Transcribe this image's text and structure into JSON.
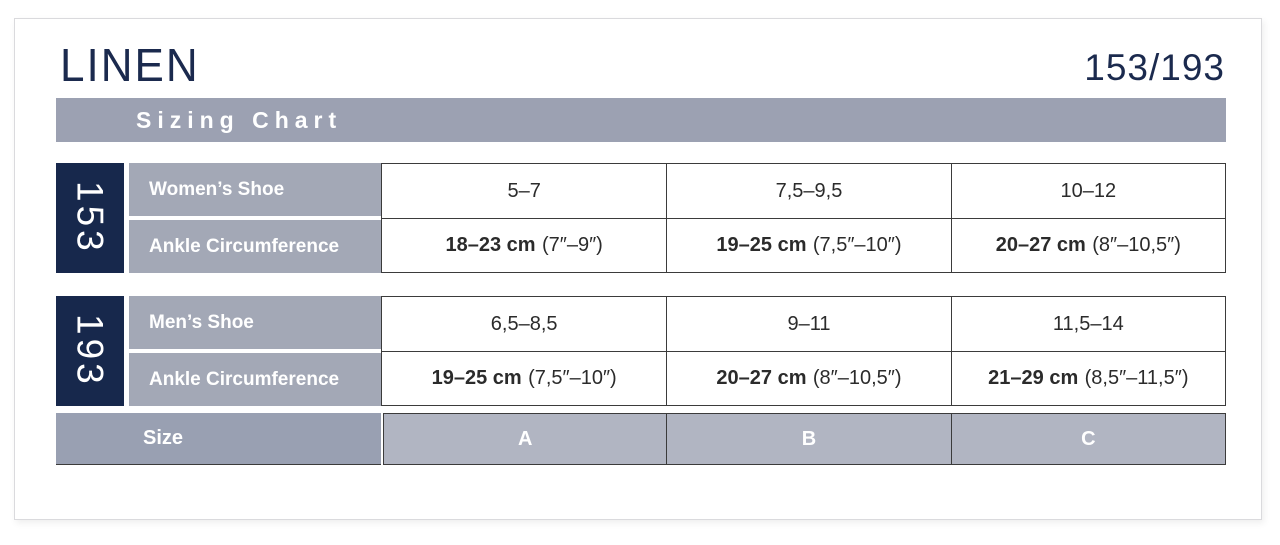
{
  "brand": "LINEN",
  "model": "153/193",
  "header": {
    "title": "Sizing Chart"
  },
  "colors": {
    "navy": "#17284c",
    "header_bar_gray": "#9ca1b2",
    "label_gray": "#a3a8b6",
    "size_label_gray": "#99a0b2",
    "size_cell_gray": "#b1b5c2",
    "border_dark": "#3b3b3b",
    "text_dark": "#2b2b2b"
  },
  "sections": [
    {
      "tag": "153",
      "rows": [
        {
          "label": "Women’s Shoe",
          "cells": [
            {
              "main": "5–7"
            },
            {
              "main": "7,5–9,5"
            },
            {
              "main": "10–12"
            }
          ]
        },
        {
          "label": "Ankle Circumference",
          "cells": [
            {
              "main": "18–23 cm",
              "suffix": "(7″–9″)"
            },
            {
              "main": "19–25 cm",
              "suffix": "(7,5″–10″)"
            },
            {
              "main": "20–27 cm",
              "suffix": "(8″–10,5″)"
            }
          ]
        }
      ]
    },
    {
      "tag": "193",
      "rows": [
        {
          "label": "Men’s Shoe",
          "cells": [
            {
              "main": "6,5–8,5"
            },
            {
              "main": "9–11"
            },
            {
              "main": "11,5–14"
            }
          ]
        },
        {
          "label": "Ankle Circumference",
          "cells": [
            {
              "main": "19–25 cm",
              "suffix": "(7,5″–10″)"
            },
            {
              "main": "20–27 cm",
              "suffix": "(8″–10,5″)"
            },
            {
              "main": "21–29 cm",
              "suffix": "(8,5″–11,5″)"
            }
          ]
        }
      ]
    }
  ],
  "size_row": {
    "label": "Size",
    "cells": [
      "A",
      "B",
      "C"
    ]
  }
}
